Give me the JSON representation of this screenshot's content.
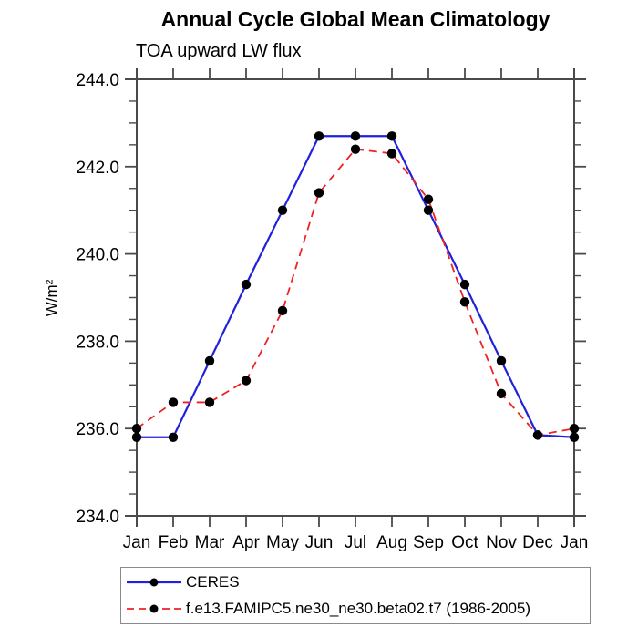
{
  "chart_data": {
    "type": "line",
    "title": "Annual Cycle Global Mean Climatology",
    "subtitle": "TOA upward LW flux",
    "ylabel": "W/m²",
    "xlabel": "",
    "categories": [
      "Jan",
      "Feb",
      "Mar",
      "Apr",
      "May",
      "Jun",
      "Jul",
      "Aug",
      "Sep",
      "Oct",
      "Nov",
      "Dec",
      "Jan"
    ],
    "ylim": [
      234.0,
      244.0
    ],
    "yticks": [
      "234.0",
      "236.0",
      "238.0",
      "240.0",
      "242.0",
      "244.0"
    ],
    "ytick_step": 2.0,
    "minor_tick_step": 0.5,
    "grid": false,
    "legend_position": "bottom-left",
    "axis_color": "#4a4a4a",
    "marker_color": "#000000",
    "series": [
      {
        "name": "CERES",
        "color": "#2020dd",
        "style": "solid",
        "marker": "circle",
        "values": [
          235.8,
          235.8,
          237.55,
          239.3,
          241.0,
          242.7,
          242.7,
          242.7,
          241.0,
          239.3,
          237.55,
          235.85,
          235.8
        ]
      },
      {
        "name": "f.e13.FAMIPC5.ne30_ne30.beta02.t7 (1986-2005)",
        "color": "#ee2222",
        "style": "dashed",
        "marker": "circle",
        "values": [
          236.0,
          236.6,
          236.6,
          237.1,
          238.7,
          241.4,
          242.4,
          242.3,
          241.25,
          238.9,
          236.8,
          235.85,
          236.0
        ]
      }
    ]
  }
}
